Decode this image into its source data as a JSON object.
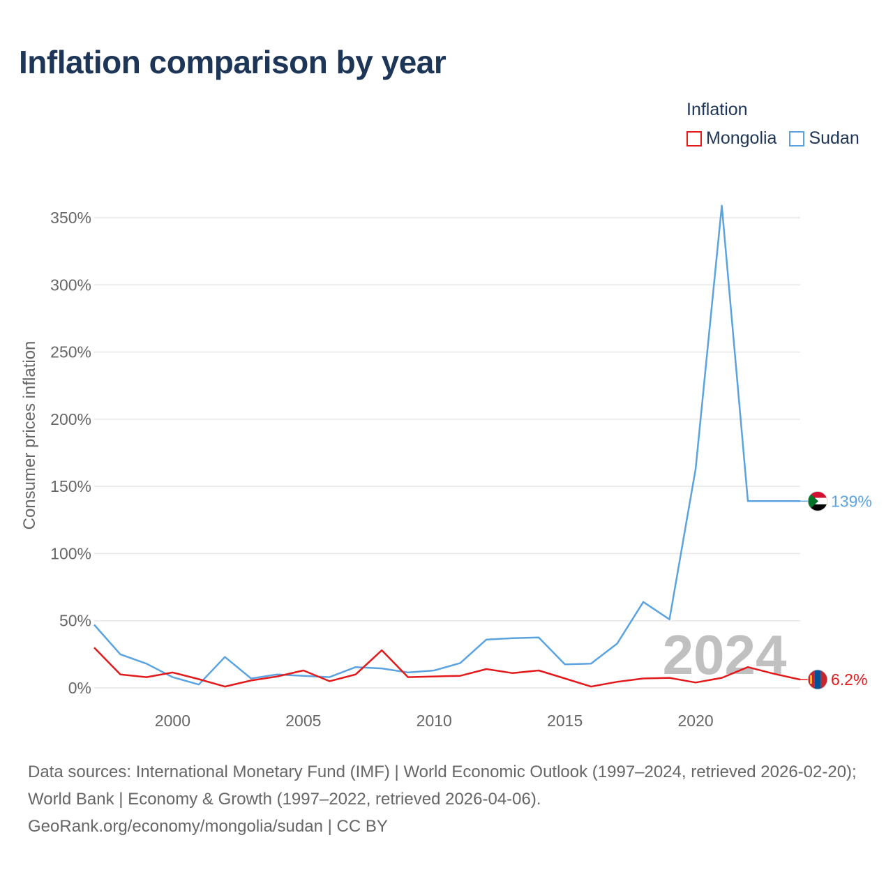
{
  "title": "Inflation comparison by year",
  "legend": {
    "title": "Inflation",
    "items": [
      {
        "name": "Mongolia",
        "color": "#e31a1c"
      },
      {
        "name": "Sudan",
        "color": "#5ba3e0"
      }
    ]
  },
  "source": {
    "line1": "Data sources: International Monetary Fund (IMF) | World Economic Outlook (1997–2024, retrieved 2026-02-20); World Bank | Economy & Growth (1997–2022, retrieved 2026-04-06).",
    "line2": "GeoRank.org/economy/mongolia/sudan | CC BY"
  },
  "chart_data": {
    "type": "line",
    "title": "Inflation comparison by year",
    "ylabel": "Consumer prices inflation",
    "xlabel": "",
    "xlim": [
      1997,
      2024
    ],
    "ylim": [
      0,
      350
    ],
    "x_ticks": [
      2000,
      2005,
      2010,
      2015,
      2020
    ],
    "y_ticks": [
      {
        "value": 0,
        "label": "0%"
      },
      {
        "value": 50,
        "label": "50%"
      },
      {
        "value": 100,
        "label": "100%"
      },
      {
        "value": 150,
        "label": "150%"
      },
      {
        "value": 200,
        "label": "200%"
      },
      {
        "value": 250,
        "label": "250%"
      },
      {
        "value": 300,
        "label": "300%"
      },
      {
        "value": 350,
        "label": "350%"
      }
    ],
    "grid": true,
    "watermark_year": "2024",
    "x": [
      1997,
      1998,
      1999,
      2000,
      2001,
      2002,
      2003,
      2004,
      2005,
      2006,
      2007,
      2008,
      2009,
      2010,
      2011,
      2012,
      2013,
      2014,
      2015,
      2016,
      2017,
      2018,
      2019,
      2020,
      2021,
      2022,
      2023,
      2024
    ],
    "series": [
      {
        "name": "Sudan",
        "color": "#5ba3e0",
        "end_label": "139%",
        "values": [
          47,
          25,
          18,
          8,
          2.5,
          23,
          7,
          10,
          9,
          8,
          15.5,
          14.5,
          11.5,
          13,
          18.5,
          36,
          37,
          37.5,
          17.5,
          18,
          33,
          64,
          51,
          163,
          359,
          139,
          139,
          139
        ]
      },
      {
        "name": "Mongolia",
        "color": "#e31a1c",
        "end_label": "6.2%",
        "values": [
          30,
          10,
          8,
          11.5,
          6.5,
          1,
          5.5,
          8.5,
          13,
          5,
          10,
          28,
          8,
          8.5,
          9,
          14,
          11,
          13,
          7,
          1,
          4.5,
          7,
          7.5,
          4,
          7.5,
          15.5,
          10.5,
          6.2
        ]
      }
    ]
  }
}
